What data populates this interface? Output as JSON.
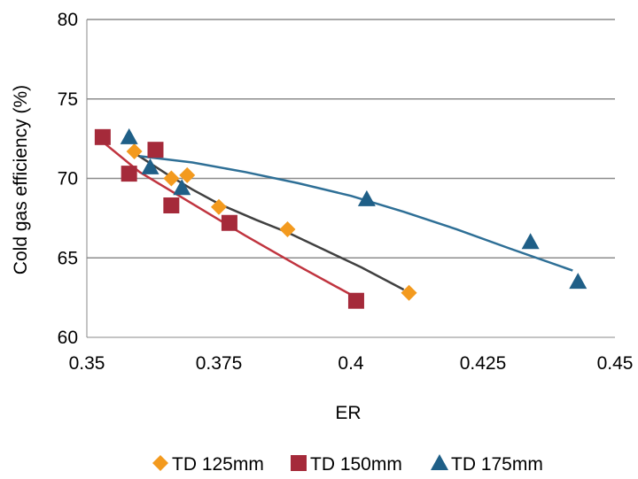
{
  "chart_data": {
    "type": "scatter",
    "title": "",
    "xlabel": "ER",
    "ylabel": "Cold gas efficiency (%)",
    "xlim": [
      0.35,
      0.45
    ],
    "ylim": [
      60,
      80
    ],
    "xticks": [
      "0.35",
      "0.375",
      "0.4",
      "0.425",
      "0.45"
    ],
    "yticks": [
      "60",
      "65",
      "70",
      "75",
      "80"
    ],
    "grid": "horizontal",
    "legend_position": "bottom",
    "series": [
      {
        "name": "TD 125mm",
        "marker": "diamond",
        "color": "#f39a1e",
        "points": [
          [
            0.359,
            71.7
          ],
          [
            0.366,
            70.0
          ],
          [
            0.369,
            70.2
          ],
          [
            0.375,
            68.2
          ],
          [
            0.388,
            66.8
          ],
          [
            0.411,
            62.8
          ]
        ],
        "trendline": [
          [
            0.359,
            71.6
          ],
          [
            0.365,
            70.3
          ],
          [
            0.37,
            69.3
          ],
          [
            0.375,
            68.4
          ],
          [
            0.382,
            67.4
          ],
          [
            0.388,
            66.6
          ],
          [
            0.395,
            65.5
          ],
          [
            0.402,
            64.4
          ],
          [
            0.41,
            63.0
          ]
        ],
        "trendline_color": "#404040"
      },
      {
        "name": "TD 150mm",
        "marker": "square",
        "color": "#a52a3a",
        "points": [
          [
            0.353,
            72.6
          ],
          [
            0.358,
            70.3
          ],
          [
            0.363,
            71.8
          ],
          [
            0.366,
            68.3
          ],
          [
            0.377,
            67.2
          ],
          [
            0.401,
            62.3
          ]
        ],
        "trendline": [
          [
            0.353,
            72.3
          ],
          [
            0.36,
            70.4
          ],
          [
            0.37,
            68.4
          ],
          [
            0.38,
            66.4
          ],
          [
            0.39,
            64.5
          ],
          [
            0.401,
            62.5
          ]
        ],
        "trendline_color": "#c0343f"
      },
      {
        "name": "TD 175mm",
        "marker": "triangle",
        "color": "#1f5f87",
        "points": [
          [
            0.358,
            72.6
          ],
          [
            0.362,
            70.7
          ],
          [
            0.368,
            69.4
          ],
          [
            0.403,
            68.7
          ],
          [
            0.434,
            66.0
          ],
          [
            0.443,
            63.5
          ]
        ],
        "trendline": [
          [
            0.36,
            71.4
          ],
          [
            0.37,
            71.0
          ],
          [
            0.38,
            70.4
          ],
          [
            0.39,
            69.7
          ],
          [
            0.4,
            68.9
          ],
          [
            0.41,
            67.9
          ],
          [
            0.42,
            66.8
          ],
          [
            0.43,
            65.6
          ],
          [
            0.442,
            64.2
          ]
        ],
        "trendline_color": "#2e6f96"
      }
    ]
  }
}
